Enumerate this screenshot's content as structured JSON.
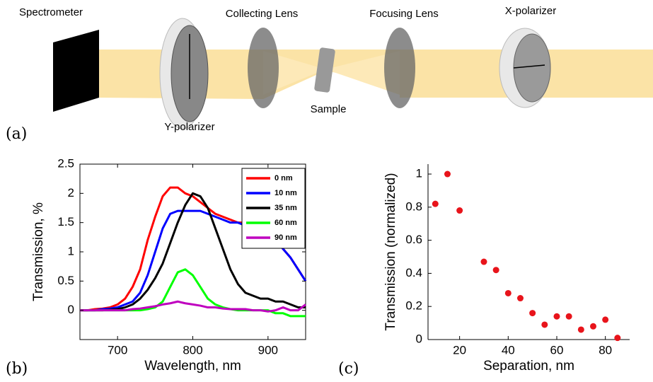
{
  "diagram": {
    "panel_label": "(a)",
    "labels": {
      "spectrometer": "Spectrometer",
      "collecting_lens": "Collecting Lens",
      "focusing_lens": "Focusing Lens",
      "x_polarizer": "X-polarizer",
      "y_polarizer": "Y-polarizer",
      "sample": "Sample"
    }
  },
  "chart_data": [
    {
      "type": "line",
      "panel_label": "(b)",
      "xlabel": "Wavelength, nm",
      "ylabel": "Transmission, %",
      "x": [
        650,
        660,
        670,
        680,
        690,
        700,
        710,
        720,
        730,
        740,
        750,
        760,
        770,
        780,
        790,
        800,
        810,
        820,
        830,
        840,
        850,
        860,
        870,
        880,
        890,
        900,
        910,
        920,
        930,
        940,
        950
      ],
      "series": [
        {
          "name": "0 nm",
          "color": "#ff0000",
          "values": [
            0,
            0,
            0.02,
            0.03,
            0.05,
            0.1,
            0.2,
            0.4,
            0.7,
            1.2,
            1.6,
            1.95,
            2.1,
            2.1,
            2.0,
            1.95,
            1.85,
            1.75,
            1.65,
            1.6,
            1.55,
            1.5,
            1.5,
            1.45,
            1.4,
            1.35,
            1.2,
            1.05,
            0.9,
            0.7,
            0.5
          ]
        },
        {
          "name": "10 nm",
          "color": "#0000ff",
          "values": [
            0,
            0,
            0,
            0.02,
            0.03,
            0.05,
            0.1,
            0.15,
            0.3,
            0.6,
            1.0,
            1.4,
            1.65,
            1.7,
            1.7,
            1.7,
            1.7,
            1.65,
            1.6,
            1.55,
            1.5,
            1.5,
            1.45,
            1.45,
            1.4,
            1.3,
            1.2,
            1.05,
            0.9,
            0.7,
            0.5
          ]
        },
        {
          "name": "35 nm",
          "color": "#000000",
          "values": [
            0,
            0,
            0,
            0,
            0.01,
            0.02,
            0.05,
            0.1,
            0.2,
            0.35,
            0.55,
            0.8,
            1.15,
            1.5,
            1.8,
            2.0,
            1.95,
            1.75,
            1.4,
            1.05,
            0.7,
            0.45,
            0.3,
            0.25,
            0.2,
            0.2,
            0.15,
            0.15,
            0.1,
            0.05,
            0.05
          ]
        },
        {
          "name": "60 nm",
          "color": "#00ff00",
          "values": [
            0,
            0,
            0,
            0,
            0,
            0,
            0,
            0,
            0,
            0.02,
            0.05,
            0.15,
            0.4,
            0.65,
            0.7,
            0.6,
            0.4,
            0.2,
            0.1,
            0.05,
            0.02,
            0,
            0,
            0,
            0,
            0,
            -0.05,
            -0.05,
            -0.1,
            -0.1,
            -0.1
          ]
        },
        {
          "name": "90 nm",
          "color": "#bf00bf",
          "values": [
            0,
            0,
            0,
            0,
            0,
            0,
            0,
            0.02,
            0.03,
            0.05,
            0.07,
            0.1,
            0.12,
            0.15,
            0.12,
            0.1,
            0.08,
            0.05,
            0.05,
            0.03,
            0.02,
            0.02,
            0.02,
            0,
            0,
            -0.02,
            0,
            0.05,
            0,
            0,
            0.1
          ]
        }
      ],
      "xlim": [
        650,
        950
      ],
      "ylim": [
        -0.5,
        2.5
      ],
      "xticks": [
        700,
        800,
        900
      ],
      "yticks": [
        0,
        0.5,
        1,
        1.5,
        2,
        2.5
      ],
      "legend": "upper right",
      "box": true
    },
    {
      "type": "scatter",
      "panel_label": "(c)",
      "xlabel": "Separation, nm",
      "ylabel": "Transmission (normalized)",
      "x": [
        10,
        15,
        20,
        30,
        35,
        40,
        45,
        50,
        55,
        60,
        65,
        70,
        75,
        80,
        85
      ],
      "values": [
        0.82,
        1.0,
        0.78,
        0.47,
        0.42,
        0.28,
        0.25,
        0.16,
        0.09,
        0.14,
        0.14,
        0.06,
        0.08,
        0.12,
        0.01
      ],
      "color": "#e8141b",
      "xlim": [
        7,
        90
      ],
      "ylim": [
        0,
        1.06
      ],
      "xticks": [
        20,
        40,
        60,
        80
      ],
      "yticks": [
        0,
        0.2,
        0.4,
        0.6,
        0.8,
        1
      ],
      "box": false
    }
  ]
}
